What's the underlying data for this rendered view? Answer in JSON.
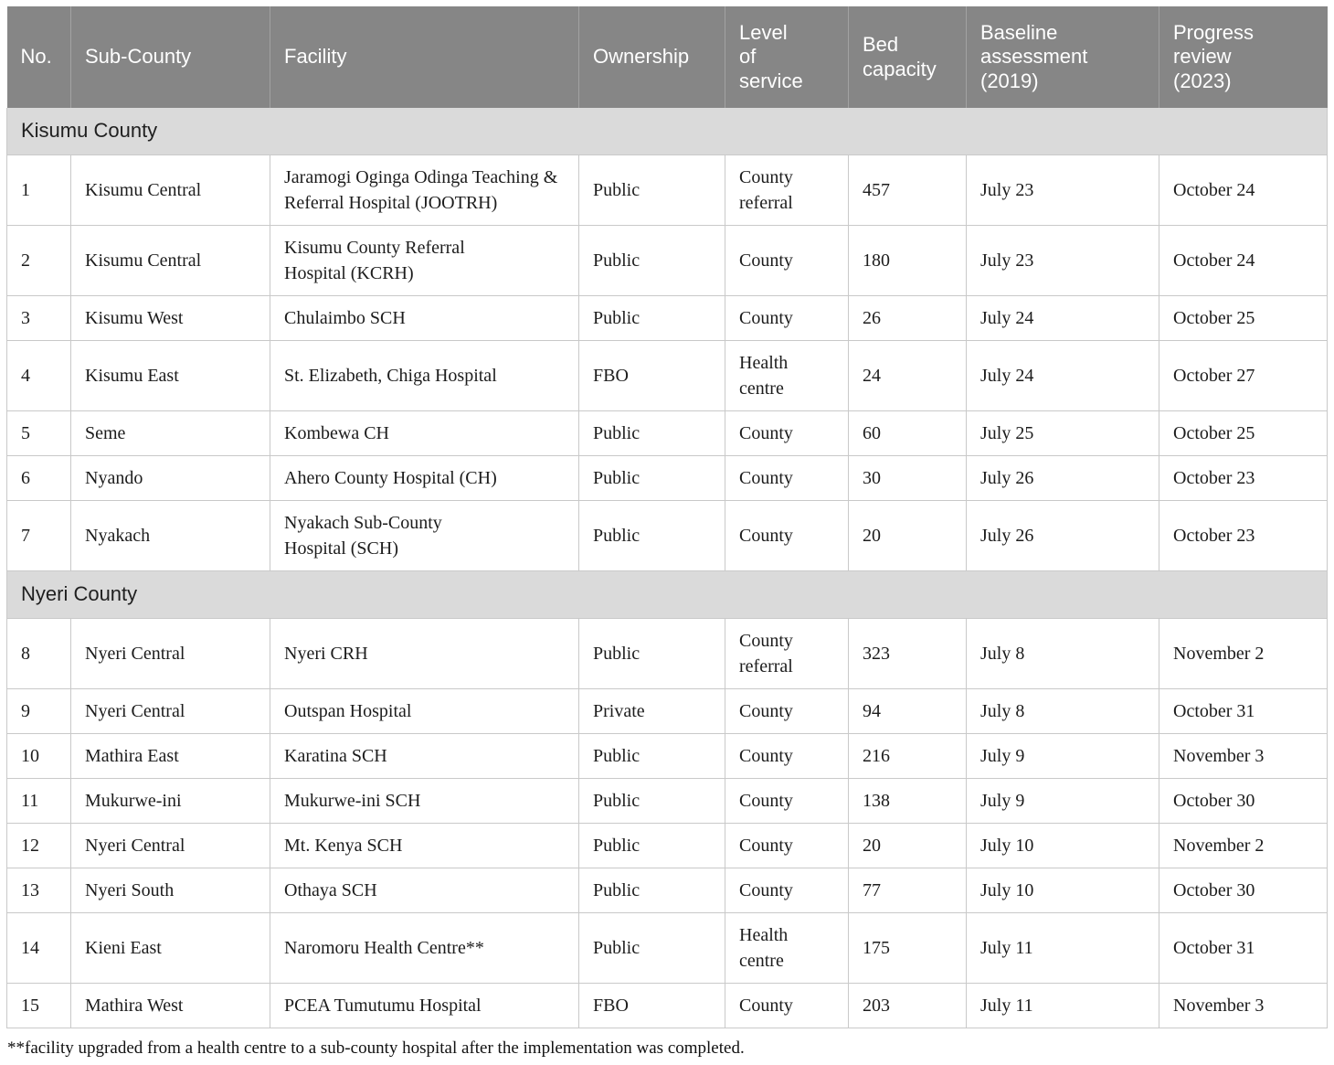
{
  "table": {
    "columns": [
      {
        "label": "No."
      },
      {
        "label": "Sub-County"
      },
      {
        "label": "Facility"
      },
      {
        "label": "Ownership"
      },
      {
        "label": "Level of service"
      },
      {
        "label": "Bed capacity"
      },
      {
        "label": "Baseline assessment (2019)"
      },
      {
        "label": "Progress review (2023)"
      }
    ],
    "sections": [
      {
        "title": "Kisumu County",
        "rows": [
          {
            "no": "1",
            "sub_county": "Kisumu Central",
            "facility": "Jaramogi Oginga Odinga Teaching &\nReferral Hospital (JOOTRH)",
            "ownership": "Public",
            "level": "County referral",
            "beds": "457",
            "baseline": "July 23",
            "review": "October 24"
          },
          {
            "no": "2",
            "sub_county": "Kisumu Central",
            "facility": "Kisumu County Referral\nHospital (KCRH)",
            "ownership": "Public",
            "level": "County",
            "beds": "180",
            "baseline": "July 23",
            "review": "October 24"
          },
          {
            "no": "3",
            "sub_county": "Kisumu West",
            "facility": "Chulaimbo SCH",
            "ownership": "Public",
            "level": "County",
            "beds": "26",
            "baseline": "July 24",
            "review": "October 25"
          },
          {
            "no": "4",
            "sub_county": "Kisumu East",
            "facility": "St. Elizabeth, Chiga Hospital",
            "ownership": "FBO",
            "level": "Health centre",
            "beds": "24",
            "baseline": "July 24",
            "review": "October 27"
          },
          {
            "no": "5",
            "sub_county": "Seme",
            "facility": "Kombewa CH",
            "ownership": "Public",
            "level": "County",
            "beds": "60",
            "baseline": "July 25",
            "review": "October 25"
          },
          {
            "no": "6",
            "sub_county": "Nyando",
            "facility": "Ahero County Hospital (CH)",
            "ownership": "Public",
            "level": "County",
            "beds": "30",
            "baseline": "July 26",
            "review": "October 23"
          },
          {
            "no": "7",
            "sub_county": "Nyakach",
            "facility": "Nyakach Sub-County\nHospital (SCH)",
            "ownership": "Public",
            "level": "County",
            "beds": "20",
            "baseline": "July 26",
            "review": "October 23"
          }
        ]
      },
      {
        "title": "Nyeri County",
        "rows": [
          {
            "no": "8",
            "sub_county": "Nyeri Central",
            "facility": "Nyeri CRH",
            "ownership": "Public",
            "level": "County referral",
            "beds": "323",
            "baseline": "July 8",
            "review": "November 2"
          },
          {
            "no": "9",
            "sub_county": "Nyeri Central",
            "facility": "Outspan Hospital",
            "ownership": "Private",
            "level": "County",
            "beds": "94",
            "baseline": "July 8",
            "review": "October 31"
          },
          {
            "no": "10",
            "sub_county": "Mathira East",
            "facility": "Karatina SCH",
            "ownership": "Public",
            "level": "County",
            "beds": "216",
            "baseline": "July 9",
            "review": "November 3"
          },
          {
            "no": "11",
            "sub_county": "Mukurwe-ini",
            "facility": "Mukurwe-ini SCH",
            "ownership": "Public",
            "level": "County",
            "beds": "138",
            "baseline": "July 9",
            "review": "October 30"
          },
          {
            "no": "12",
            "sub_county": "Nyeri Central",
            "facility": "Mt. Kenya SCH",
            "ownership": "Public",
            "level": "County",
            "beds": "20",
            "baseline": "July 10",
            "review": "November 2"
          },
          {
            "no": "13",
            "sub_county": "Nyeri South",
            "facility": "Othaya SCH",
            "ownership": "Public",
            "level": "County",
            "beds": "77",
            "baseline": "July 10",
            "review": "October 30"
          },
          {
            "no": "14",
            "sub_county": "Kieni East",
            "facility": "Naromoru Health Centre**",
            "ownership": "Public",
            "level": "Health centre",
            "beds": "175",
            "baseline": "July 11",
            "review": "October 31"
          },
          {
            "no": "15",
            "sub_county": "Mathira West",
            "facility": "PCEA Tumutumu Hospital",
            "ownership": "FBO",
            "level": "County",
            "beds": "203",
            "baseline": "July 11",
            "review": "November 3"
          }
        ]
      }
    ],
    "footnote": "**facility upgraded from a health centre to a sub-county hospital after the implementation was completed."
  },
  "colors": {
    "header_background": "#868686",
    "header_text": "#ffffff",
    "section_band_background": "#dadada",
    "body_border": "#c9c9c9",
    "body_text": "#1c1c1c"
  }
}
